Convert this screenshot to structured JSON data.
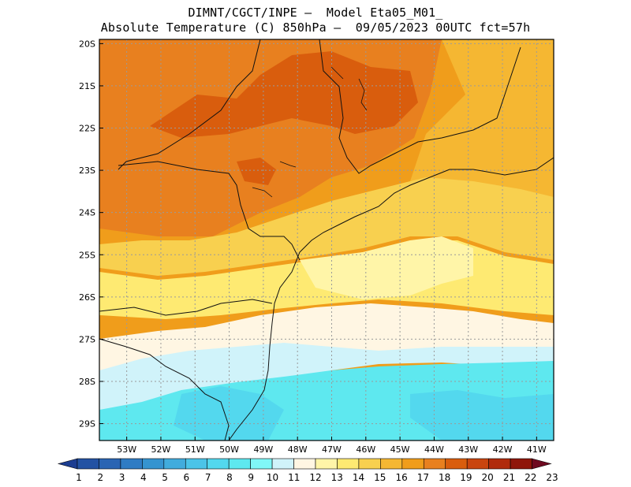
{
  "header": {
    "line1": "DIMNT/CGCT/INPE –  Model Eta05_M01_",
    "line2": "Absolute Temperature (C) 850hPa –  09/05/2023 00UTC fct=57h"
  },
  "map": {
    "lat_labels": [
      "20S",
      "21S",
      "22S",
      "23S",
      "24S",
      "25S",
      "26S",
      "27S",
      "28S",
      "29S"
    ],
    "lon_labels": [
      "53W",
      "52W",
      "51W",
      "50W",
      "49W",
      "48W",
      "47W",
      "46W",
      "45W",
      "44W",
      "43W",
      "42W",
      "41W"
    ],
    "lat_range": [
      -29.4,
      -19.9
    ],
    "lon_range": [
      -53.8,
      -40.5
    ],
    "grid": true,
    "grid_style": "dotted"
  },
  "colorbar": {
    "labels": [
      "1",
      "2",
      "3",
      "4",
      "5",
      "6",
      "7",
      "8",
      "9",
      "10",
      "11",
      "12",
      "13",
      "14",
      "15",
      "16",
      "17",
      "18",
      "19",
      "20",
      "21",
      "22",
      "23"
    ],
    "colors": [
      "#1c3d91",
      "#2352a3",
      "#2a64b3",
      "#2f7cc4",
      "#3594d0",
      "#41acdd",
      "#4bc4e8",
      "#53d8ee",
      "#5ee8ef",
      "#80f7f7",
      "#d0f3fa",
      "#fff6e3",
      "#fff5a8",
      "#feea72",
      "#f8d04f",
      "#f5b732",
      "#f09d1b",
      "#e8801f",
      "#d95d0d",
      "#c9450f",
      "#b02b0c",
      "#8f160a",
      "#6f0a20"
    ],
    "extend": "both"
  }
}
